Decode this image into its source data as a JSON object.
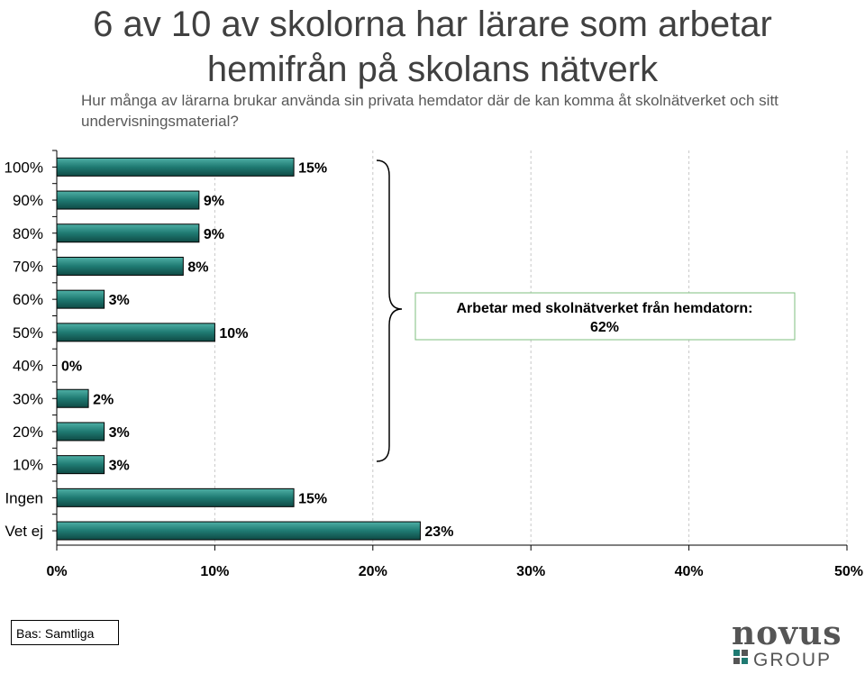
{
  "title_line1": "6 av 10 av skolorna har lärare som arbetar",
  "title_line2": "hemifrån på skolans nätverk",
  "subtitle_line1": "Hur många av lärarna brukar använda sin privata hemdator där de kan komma åt skolnätverket och sitt",
  "subtitle_line2": "undervisningsmaterial?",
  "chart_data": {
    "type": "bar",
    "orientation": "horizontal",
    "categories": [
      "100%",
      "90%",
      "80%",
      "70%",
      "60%",
      "50%",
      "40%",
      "30%",
      "20%",
      "10%",
      "Ingen",
      "Vet ej"
    ],
    "values": [
      15,
      9,
      9,
      8,
      3,
      10,
      0,
      2,
      3,
      3,
      15,
      23
    ],
    "data_labels": [
      "15%",
      "9%",
      "9%",
      "8%",
      "3%",
      "10%",
      "0%",
      "2%",
      "3%",
      "3%",
      "15%",
      "23%"
    ],
    "xlim": [
      0,
      50
    ],
    "xticks": [
      0,
      10,
      20,
      30,
      40,
      50
    ],
    "xtick_labels": [
      "0%",
      "10%",
      "20%",
      "30%",
      "40%",
      "50%"
    ],
    "bar_color": "#1f7a72",
    "grid": "vertical dashed",
    "annotation": {
      "text_line1": "Arbetar med skolnätverket från hemdatorn:",
      "text_line2": "62%",
      "border_color": "#7fbf7f",
      "brace_spans": [
        "100%",
        "10%"
      ]
    }
  },
  "footer": {
    "base": "Bas: Samtliga"
  },
  "logo": {
    "line1": "novus",
    "line2": "GROUP"
  }
}
